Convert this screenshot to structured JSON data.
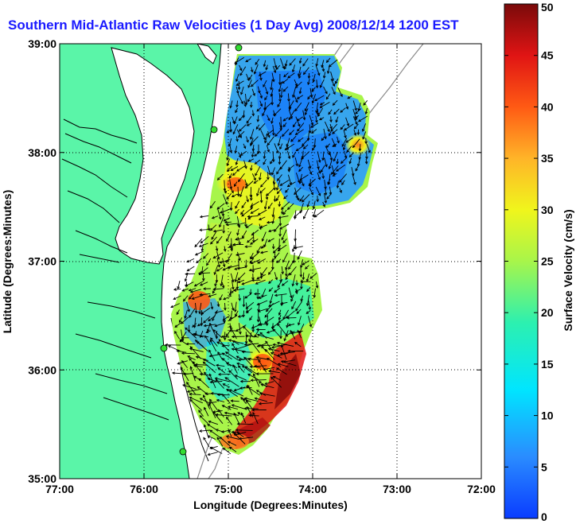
{
  "title": "Southern Mid-Atlantic Raw Velocities (1 Day Avg) 2008/12/14 1200 EST",
  "x_axis": {
    "label": "Longitude (Degrees:Minutes)",
    "ticks": [
      "77:00",
      "76:00",
      "75:00",
      "74:00",
      "73:00",
      "72:00"
    ]
  },
  "y_axis": {
    "label": "Latitude (Degrees:Minutes)",
    "ticks": [
      "39:00",
      "38:00",
      "37:00",
      "36:00",
      "35:00"
    ]
  },
  "colorbar": {
    "label": "Surface Velocity (cm/s)",
    "ticks": [
      "50",
      "45",
      "40",
      "35",
      "30",
      "25",
      "20",
      "15",
      "10",
      "5",
      "0"
    ],
    "range": [
      0,
      50
    ]
  },
  "colors": {
    "land": "#5af5a8",
    "title": "#1a1aff",
    "coast": "#000000",
    "bathymetry": "#8a8a8a",
    "station": "#33dd33"
  },
  "map_extent": {
    "lon": [
      -77,
      -72
    ],
    "lat": [
      35,
      39
    ]
  }
}
